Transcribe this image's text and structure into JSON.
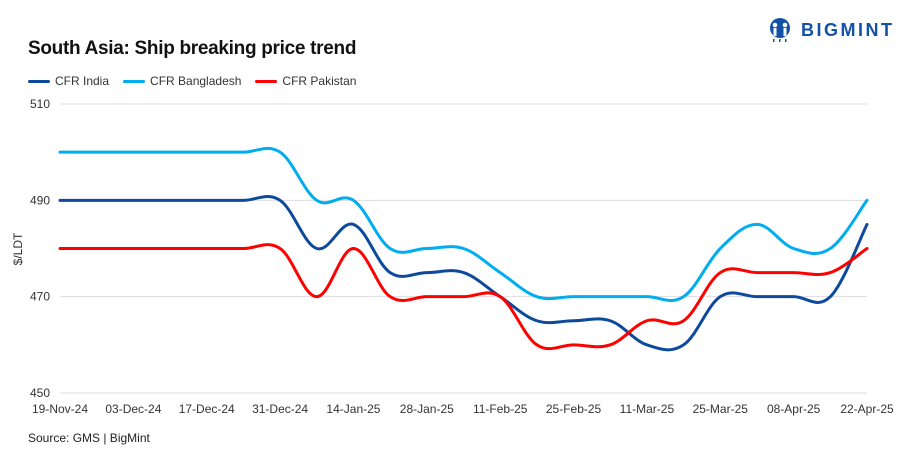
{
  "logo": {
    "text": "BIGMINT"
  },
  "source": "Source: GMS | BigMint",
  "colors": {
    "CFR India": "#0d4a9c",
    "CFR Bangladesh": "#00aeef",
    "CFR Pakistan": "#ff0000",
    "grid": "#dddddd"
  },
  "chart_data": {
    "type": "line",
    "title": "South Asia: Ship breaking  price trend",
    "xlabel": "",
    "ylabel": "$/LDT",
    "ylim": [
      450,
      510
    ],
    "yticks": [
      450,
      470,
      490,
      510
    ],
    "grid": true,
    "legend_position": "top-left",
    "x": [
      "19-Nov-24",
      "26-Nov-24",
      "03-Dec-24",
      "10-Dec-24",
      "17-Dec-24",
      "24-Dec-24",
      "31-Dec-24",
      "07-Jan-25",
      "14-Jan-25",
      "21-Jan-25",
      "28-Jan-25",
      "04-Feb-25",
      "11-Feb-25",
      "18-Feb-25",
      "25-Feb-25",
      "04-Mar-25",
      "11-Mar-25",
      "18-Mar-25",
      "25-Mar-25",
      "01-Apr-25",
      "08-Apr-25",
      "15-Apr-25",
      "22-Apr-25"
    ],
    "xtick_labels": [
      "19-Nov-24",
      "03-Dec-24",
      "17-Dec-24",
      "31-Dec-24",
      "14-Jan-25",
      "28-Jan-25",
      "11-Feb-25",
      "25-Feb-25",
      "11-Mar-25",
      "25-Mar-25",
      "08-Apr-25",
      "22-Apr-25"
    ],
    "series": [
      {
        "name": "CFR India",
        "values": [
          490,
          490,
          490,
          490,
          490,
          490,
          490,
          480,
          485,
          475,
          475,
          475,
          470,
          465,
          465,
          465,
          460,
          460,
          470,
          470,
          470,
          470,
          485
        ]
      },
      {
        "name": "CFR Bangladesh",
        "values": [
          500,
          500,
          500,
          500,
          500,
          500,
          500,
          490,
          490,
          480,
          480,
          480,
          475,
          470,
          470,
          470,
          470,
          470,
          480,
          485,
          480,
          480,
          490
        ]
      },
      {
        "name": "CFR Pakistan",
        "values": [
          480,
          480,
          480,
          480,
          480,
          480,
          480,
          470,
          480,
          470,
          470,
          470,
          470,
          460,
          460,
          460,
          465,
          465,
          475,
          475,
          475,
          475,
          480
        ]
      }
    ]
  }
}
